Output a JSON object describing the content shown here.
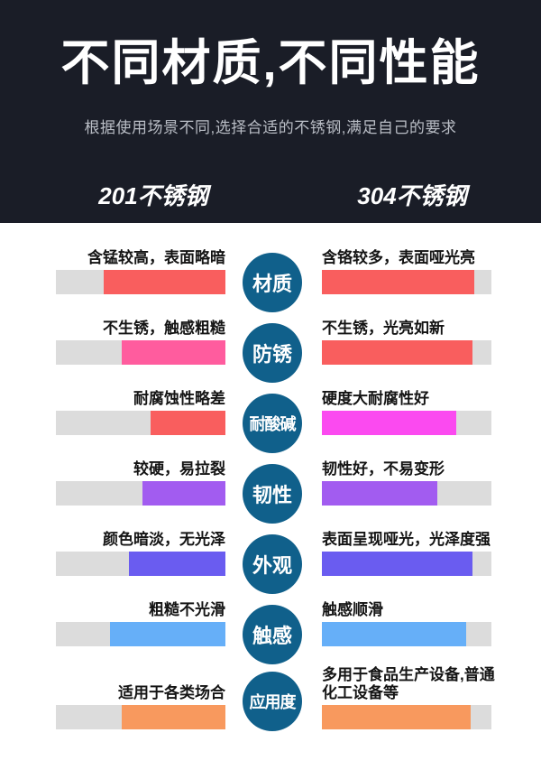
{
  "header": {
    "title": "不同材质,不同性能",
    "subtitle": "根据使用场景不同,选择合适的不锈钢,满足自己的要求",
    "left_column_label": "201不锈钢",
    "right_column_label": "304不锈钢"
  },
  "colors": {
    "header_background": "#1a1d27",
    "subtitle_text": "#b9bdc5",
    "circle": "#10608b",
    "bar_track": "#dcdcdc",
    "red": "#f95e5e",
    "pink": "#ff5c9e",
    "magenta": "#fb4af0",
    "purple": "#a25cf0",
    "blue_violet": "#6a5cf0",
    "light_blue": "#66aff8",
    "orange": "#f8995e"
  },
  "rows": [
    {
      "label": "材质",
      "left": {
        "text": "含锰较高，表面略暗",
        "pct": 72,
        "color": "#f95e5e"
      },
      "right": {
        "text": "含铬较多，表面哑光亮",
        "pct": 90,
        "color": "#f95e5e"
      }
    },
    {
      "label": "防锈",
      "left": {
        "text": "不生锈，触感粗糙",
        "pct": 61,
        "color": "#ff5c9e"
      },
      "right": {
        "text": "不生锈，光亮如新",
        "pct": 89,
        "color": "#f95e5e"
      }
    },
    {
      "label": "耐酸碱",
      "left": {
        "text": "耐腐蚀性略差",
        "pct": 44,
        "color": "#f95e5e"
      },
      "right": {
        "text": "硬度大耐腐性好",
        "pct": 79,
        "color": "#fb4af0"
      }
    },
    {
      "label": "韧性",
      "left": {
        "text": "较硬，易拉裂",
        "pct": 49,
        "color": "#a25cf0"
      },
      "right": {
        "text": "韧性好，不易变形",
        "pct": 68,
        "color": "#a25cf0"
      }
    },
    {
      "label": "外观",
      "left": {
        "text": "颜色暗淡，无光泽",
        "pct": 57,
        "color": "#6a5cf0"
      },
      "right": {
        "text": "表面呈现哑光，光泽度强",
        "pct": 89,
        "color": "#6a5cf0"
      }
    },
    {
      "label": "触感",
      "left": {
        "text": "粗糙不光滑",
        "pct": 68,
        "color": "#66aff8"
      },
      "right": {
        "text": "触感顺滑",
        "pct": 85,
        "color": "#66aff8"
      }
    },
    {
      "label": "应用度",
      "left": {
        "text": "适用于各类场合",
        "pct": 61,
        "color": "#f8995e"
      },
      "right": {
        "text": "多用于食品生产设备,普通\n化工设备等",
        "pct": 88,
        "color": "#f8995e"
      }
    }
  ],
  "chart_data": {
    "type": "bar",
    "title": "不同材质,不同性能",
    "subtitle": "根据使用场景不同,选择合适的不锈钢,满足自己的要求",
    "categories": [
      "材质",
      "防锈",
      "耐酸碱",
      "韧性",
      "外观",
      "触感",
      "应用度"
    ],
    "series": [
      {
        "name": "201不锈钢",
        "values": [
          72,
          61,
          44,
          49,
          57,
          68,
          61
        ],
        "annotations": [
          "含锰较高，表面略暗",
          "不生锈，触感粗糙",
          "耐腐蚀性略差",
          "较硬，易拉裂",
          "颜色暗淡，无光泽",
          "粗糙不光滑",
          "适用于各类场合"
        ]
      },
      {
        "name": "304不锈钢",
        "values": [
          90,
          89,
          79,
          68,
          89,
          85,
          88
        ],
        "annotations": [
          "含铬较多，表面哑光亮",
          "不生锈，光亮如新",
          "硬度大耐腐性好",
          "韧性好，不易变形",
          "表面呈现哑光，光泽度强",
          "触感顺滑",
          "多用于食品生产设备,普通化工设备等"
        ]
      }
    ],
    "ylim": [
      0,
      100
    ],
    "grid": false,
    "legend_position": "top",
    "orientation": "horizontal-mirrored"
  }
}
